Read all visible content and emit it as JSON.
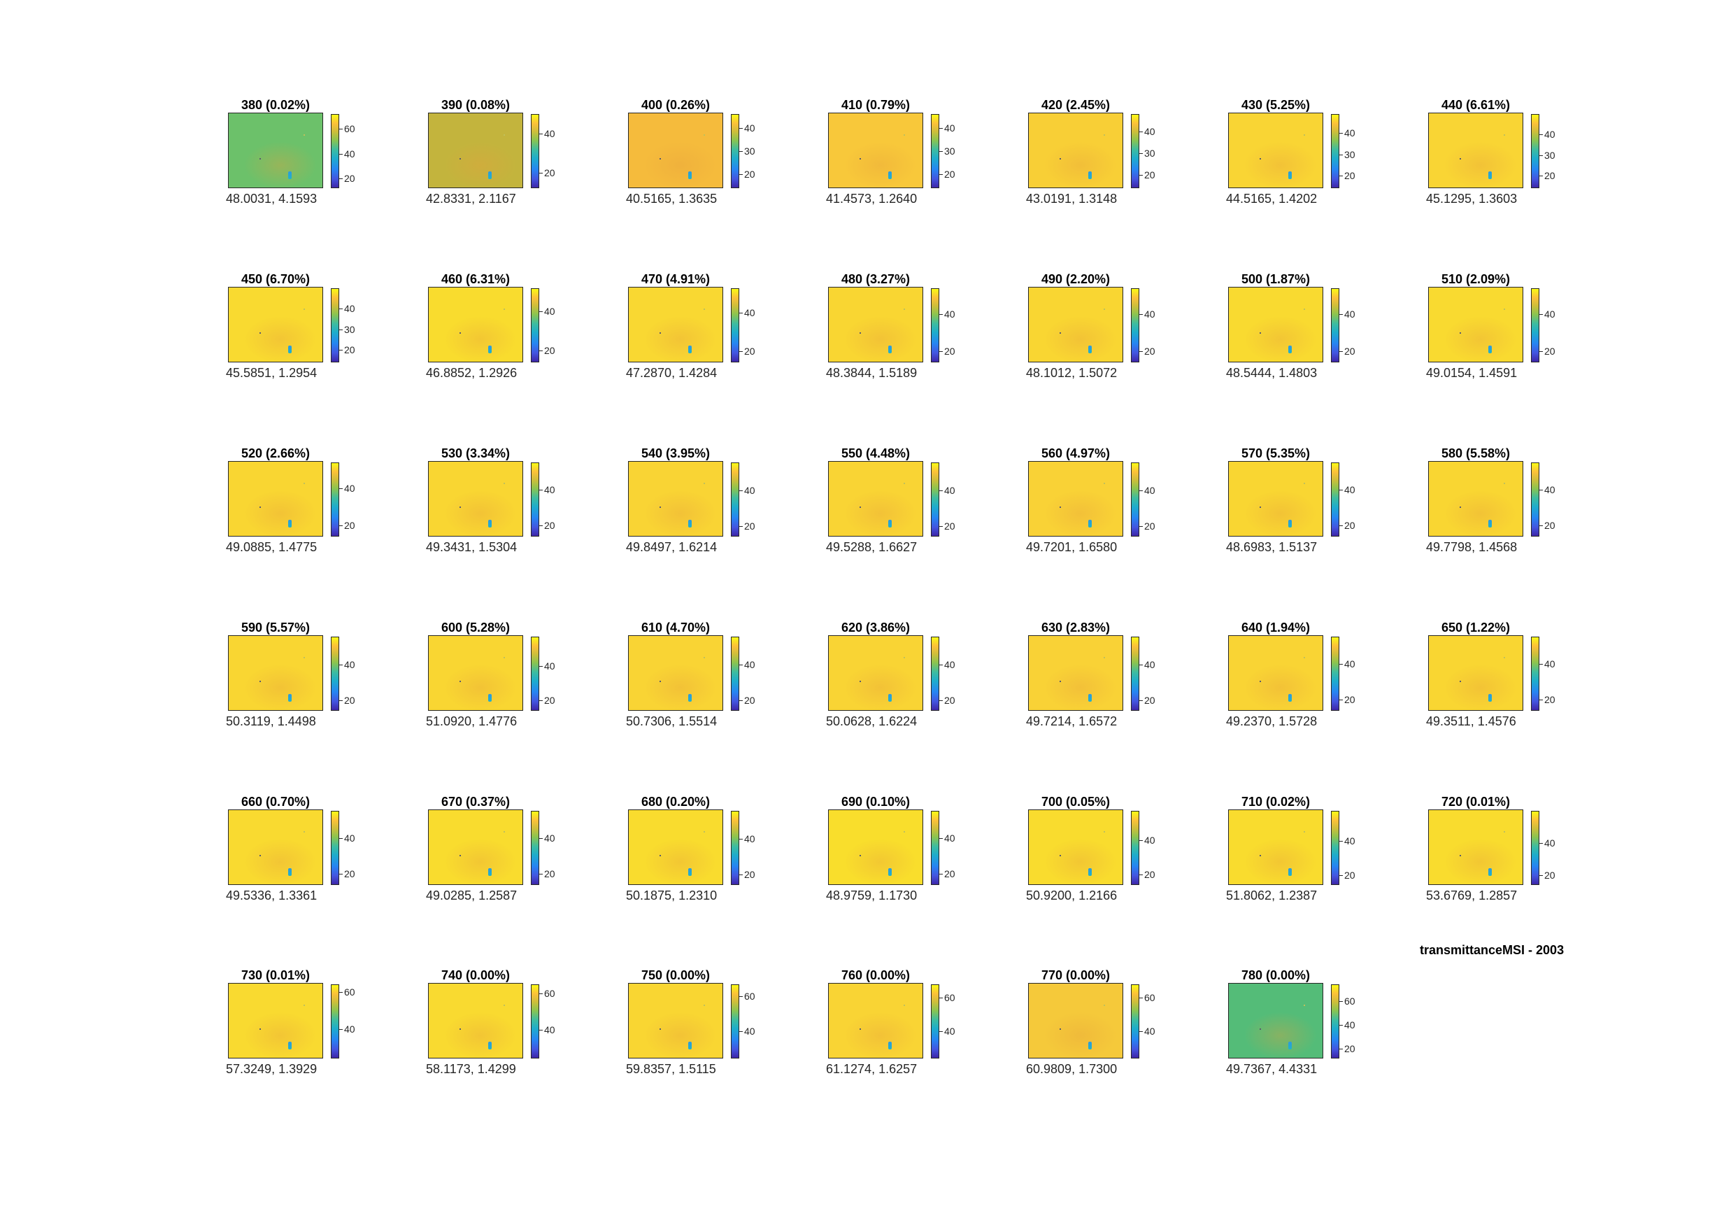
{
  "figure_title": "transmittanceMSI - 2003",
  "chart_data": {
    "type": "heatmap",
    "title": "transmittanceMSI - 2003",
    "panels": [
      {
        "title": "380 (0.02%)",
        "stats": "48.0031, 4.1593",
        "ticks": [
          20,
          40,
          60
        ],
        "clim": [
          12,
          72
        ],
        "base_color": "#6cc16a"
      },
      {
        "title": "390 (0.08%)",
        "stats": "42.8331, 2.1167",
        "ticks": [
          20,
          40
        ],
        "clim": [
          12,
          50
        ],
        "base_color": "#c3b43d"
      },
      {
        "title": "400 (0.26%)",
        "stats": "40.5165, 1.3635",
        "ticks": [
          20,
          30,
          40
        ],
        "clim": [
          14,
          46
        ],
        "base_color": "#f5bb3c"
      },
      {
        "title": "410 (0.79%)",
        "stats": "41.4573, 1.2640",
        "ticks": [
          20,
          30,
          40
        ],
        "clim": [
          14,
          46
        ],
        "base_color": "#f8c83a"
      },
      {
        "title": "420 (2.45%)",
        "stats": "43.0191, 1.3148",
        "ticks": [
          20,
          30,
          40
        ],
        "clim": [
          14,
          48
        ],
        "base_color": "#f8cf36"
      },
      {
        "title": "430 (5.25%)",
        "stats": "44.5165, 1.4202",
        "ticks": [
          20,
          30,
          40
        ],
        "clim": [
          14,
          49
        ],
        "base_color": "#f9d534"
      },
      {
        "title": "440 (6.61%)",
        "stats": "45.1295, 1.3603",
        "ticks": [
          20,
          30,
          40
        ],
        "clim": [
          14,
          50
        ],
        "base_color": "#f9d534"
      },
      {
        "title": "450 (6.70%)",
        "stats": "45.5851, 1.2954",
        "ticks": [
          20,
          30,
          40
        ],
        "clim": [
          14,
          50
        ],
        "base_color": "#f9da30"
      },
      {
        "title": "460 (6.31%)",
        "stats": "46.8852, 1.2926",
        "ticks": [
          20,
          40
        ],
        "clim": [
          14,
          52
        ],
        "base_color": "#f9dc2e"
      },
      {
        "title": "470 (4.91%)",
        "stats": "47.2870, 1.4284",
        "ticks": [
          20,
          40
        ],
        "clim": [
          14,
          53
        ],
        "base_color": "#f9d832"
      },
      {
        "title": "480 (3.27%)",
        "stats": "48.3844, 1.5189",
        "ticks": [
          20,
          40
        ],
        "clim": [
          14,
          54
        ],
        "base_color": "#f9d632"
      },
      {
        "title": "490 (2.20%)",
        "stats": "48.1012, 1.5072",
        "ticks": [
          20,
          40
        ],
        "clim": [
          14,
          54
        ],
        "base_color": "#f9d632"
      },
      {
        "title": "500 (1.87%)",
        "stats": "48.5444, 1.4803",
        "ticks": [
          20,
          40
        ],
        "clim": [
          14,
          54
        ],
        "base_color": "#f9da30"
      },
      {
        "title": "510 (2.09%)",
        "stats": "49.0154, 1.4591",
        "ticks": [
          20,
          40
        ],
        "clim": [
          14,
          54
        ],
        "base_color": "#f9da30"
      },
      {
        "title": "520 (2.66%)",
        "stats": "49.0885, 1.4775",
        "ticks": [
          20,
          40
        ],
        "clim": [
          14,
          54
        ],
        "base_color": "#f9d632"
      },
      {
        "title": "530 (3.34%)",
        "stats": "49.3431, 1.5304",
        "ticks": [
          20,
          40
        ],
        "clim": [
          14,
          55
        ],
        "base_color": "#f9d632"
      },
      {
        "title": "540 (3.95%)",
        "stats": "49.8497, 1.6214",
        "ticks": [
          20,
          40
        ],
        "clim": [
          14,
          56
        ],
        "base_color": "#f9d434"
      },
      {
        "title": "550 (4.48%)",
        "stats": "49.5288, 1.6627",
        "ticks": [
          20,
          40
        ],
        "clim": [
          14,
          56
        ],
        "base_color": "#f9d434"
      },
      {
        "title": "560 (4.97%)",
        "stats": "49.7201, 1.6580",
        "ticks": [
          20,
          40
        ],
        "clim": [
          14,
          56
        ],
        "base_color": "#f9d236"
      },
      {
        "title": "570 (5.35%)",
        "stats": "48.6983, 1.5137",
        "ticks": [
          20,
          40
        ],
        "clim": [
          14,
          55
        ],
        "base_color": "#f9d632"
      },
      {
        "title": "580 (5.58%)",
        "stats": "49.7798, 1.4568",
        "ticks": [
          20,
          40
        ],
        "clim": [
          14,
          55
        ],
        "base_color": "#f9d632"
      },
      {
        "title": "590 (5.57%)",
        "stats": "50.3119, 1.4498",
        "ticks": [
          20,
          40
        ],
        "clim": [
          14,
          56
        ],
        "base_color": "#f9d632"
      },
      {
        "title": "600 (5.28%)",
        "stats": "51.0920, 1.4776",
        "ticks": [
          20,
          40
        ],
        "clim": [
          14,
          57
        ],
        "base_color": "#f9d632"
      },
      {
        "title": "610 (4.70%)",
        "stats": "50.7306, 1.5514",
        "ticks": [
          20,
          40
        ],
        "clim": [
          14,
          56
        ],
        "base_color": "#f9d434"
      },
      {
        "title": "620 (3.86%)",
        "stats": "50.0628, 1.6224",
        "ticks": [
          20,
          40
        ],
        "clim": [
          14,
          56
        ],
        "base_color": "#f9d434"
      },
      {
        "title": "630 (2.83%)",
        "stats": "49.7214, 1.6572",
        "ticks": [
          20,
          40
        ],
        "clim": [
          14,
          56
        ],
        "base_color": "#f9d236"
      },
      {
        "title": "640 (1.94%)",
        "stats": "49.2370, 1.5728",
        "ticks": [
          20,
          40
        ],
        "clim": [
          14,
          55
        ],
        "base_color": "#f9d434"
      },
      {
        "title": "650 (1.22%)",
        "stats": "49.3511, 1.4576",
        "ticks": [
          20,
          40
        ],
        "clim": [
          14,
          55
        ],
        "base_color": "#f9d632"
      },
      {
        "title": "660 (0.70%)",
        "stats": "49.5336, 1.3361",
        "ticks": [
          20,
          40
        ],
        "clim": [
          14,
          55
        ],
        "base_color": "#f9da30"
      },
      {
        "title": "670 (0.37%)",
        "stats": "49.0285, 1.2587",
        "ticks": [
          20,
          40
        ],
        "clim": [
          14,
          55
        ],
        "base_color": "#f9dc2e"
      },
      {
        "title": "680 (0.20%)",
        "stats": "50.1875, 1.2310",
        "ticks": [
          20,
          40
        ],
        "clim": [
          14,
          56
        ],
        "base_color": "#f9dc2e"
      },
      {
        "title": "690 (0.10%)",
        "stats": "48.9759, 1.1730",
        "ticks": [
          20,
          40
        ],
        "clim": [
          14,
          55
        ],
        "base_color": "#f9de2c"
      },
      {
        "title": "700 (0.05%)",
        "stats": "50.9200, 1.2166",
        "ticks": [
          20,
          40
        ],
        "clim": [
          14,
          57
        ],
        "base_color": "#f9dc2e"
      },
      {
        "title": "710 (0.02%)",
        "stats": "51.8062, 1.2387",
        "ticks": [
          20,
          40
        ],
        "clim": [
          14,
          58
        ],
        "base_color": "#f9dc2e"
      },
      {
        "title": "720 (0.01%)",
        "stats": "53.6769, 1.2857",
        "ticks": [
          20,
          40
        ],
        "clim": [
          14,
          60
        ],
        "base_color": "#f9dc2e"
      },
      {
        "title": "730 (0.01%)",
        "stats": "57.3249, 1.3929",
        "ticks": [
          40,
          60
        ],
        "clim": [
          24,
          64
        ],
        "base_color": "#f9da30"
      },
      {
        "title": "740 (0.00%)",
        "stats": "58.1173, 1.4299",
        "ticks": [
          40,
          60
        ],
        "clim": [
          24,
          65
        ],
        "base_color": "#f9da30"
      },
      {
        "title": "750 (0.00%)",
        "stats": "59.8357, 1.5115",
        "ticks": [
          40,
          60
        ],
        "clim": [
          24,
          67
        ],
        "base_color": "#f9d632"
      },
      {
        "title": "760 (0.00%)",
        "stats": "61.1274, 1.6257",
        "ticks": [
          40,
          60
        ],
        "clim": [
          24,
          68
        ],
        "base_color": "#f9d434"
      },
      {
        "title": "770 (0.00%)",
        "stats": "60.9809, 1.7300",
        "ticks": [
          40,
          60
        ],
        "clim": [
          24,
          68
        ],
        "base_color": "#f5c93a"
      },
      {
        "title": "780 (0.00%)",
        "stats": "49.7367, 4.4331",
        "ticks": [
          20,
          40,
          60
        ],
        "clim": [
          12,
          74
        ],
        "base_color": "#54bc78"
      }
    ]
  }
}
